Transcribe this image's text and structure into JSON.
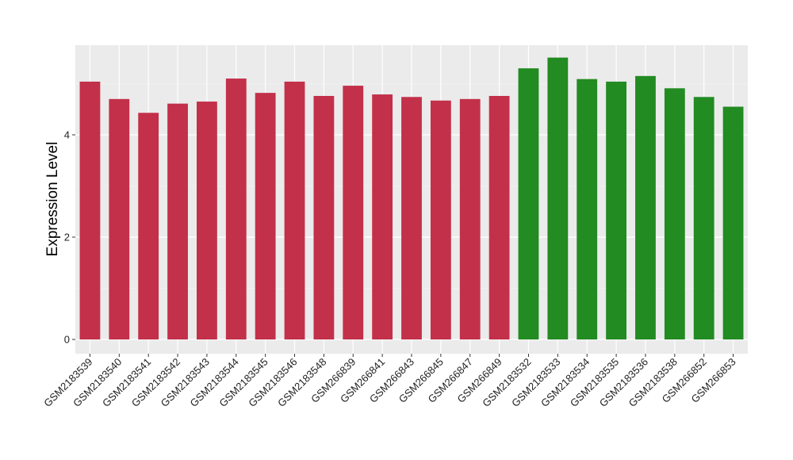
{
  "chart_data": {
    "type": "bar",
    "ylabel": "Expression Level",
    "xlabel": "",
    "ylim": [
      0,
      5.76
    ],
    "yticks": [
      0,
      2,
      4
    ],
    "grid": true,
    "background": "#EBEBEB",
    "categories": [
      "GSM2183539",
      "GSM2183540",
      "GSM2183541",
      "GSM2183542",
      "GSM2183543",
      "GSM2183544",
      "GSM2183545",
      "GSM2183546",
      "GSM2183548",
      "GSM266839",
      "GSM266841",
      "GSM266843",
      "GSM266845",
      "GSM266847",
      "GSM266849",
      "GSM2183532",
      "GSM2183533",
      "GSM2183534",
      "GSM2183535",
      "GSM2183536",
      "GSM2183538",
      "GSM266852",
      "GSM266853"
    ],
    "values": [
      5.04,
      4.7,
      4.43,
      4.61,
      4.65,
      5.1,
      4.82,
      5.04,
      4.76,
      4.96,
      4.79,
      4.74,
      4.67,
      4.7,
      4.76,
      5.3,
      5.51,
      5.09,
      5.04,
      5.15,
      4.91,
      4.74,
      4.55
    ],
    "colors": [
      "#C3304A",
      "#C3304A",
      "#C3304A",
      "#C3304A",
      "#C3304A",
      "#C3304A",
      "#C3304A",
      "#C3304A",
      "#C3304A",
      "#C3304A",
      "#C3304A",
      "#C3304A",
      "#C3304A",
      "#C3304A",
      "#C3304A",
      "#228B22",
      "#228B22",
      "#228B22",
      "#228B22",
      "#228B22",
      "#228B22",
      "#228B22",
      "#228B22"
    ]
  }
}
